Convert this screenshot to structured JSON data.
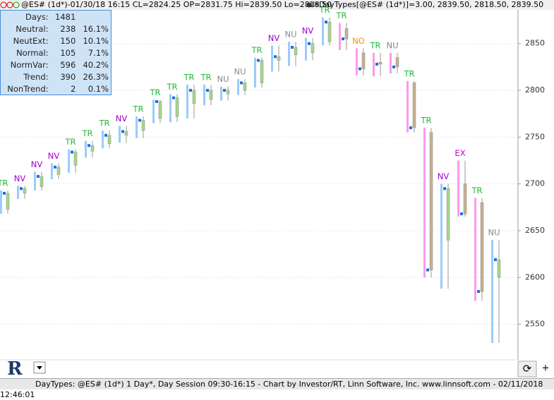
{
  "chart_data": {
    "type": "candlestick",
    "header": "@ES# (1d*)-01/30/18 16:15 CL=2824.25 OP=2831.75 Hi=2839.50 Lo=2818.50",
    "indicator": "IsDayTypes[@ES# (1d*)]=3.00, 2839.50, 2818.50, 2839.50",
    "ylim": [
      2512,
      2886
    ],
    "yticks": [
      2550,
      2600,
      2650,
      2700,
      2750,
      2800,
      2850
    ],
    "grid": true,
    "type_colors": {
      "TR": "#22b83a",
      "NV": "#9a00cc",
      "NU": "#8a8a8a",
      "NO": "#e89a00",
      "EX": "#cc00cc"
    },
    "up_color": "#a6d78a",
    "down_color": "#c8b090",
    "days": [
      {
        "label": "TR",
        "open": 2673,
        "high": 2693,
        "low": 2668,
        "close": 2690
      },
      {
        "label": "NV",
        "open": 2690,
        "high": 2698,
        "low": 2684,
        "close": 2695
      },
      {
        "label": "NV",
        "open": 2697,
        "high": 2713,
        "low": 2693,
        "close": 2708
      },
      {
        "label": "NV",
        "open": 2710,
        "high": 2722,
        "low": 2705,
        "close": 2718
      },
      {
        "label": "TR",
        "open": 2720,
        "high": 2737,
        "low": 2712,
        "close": 2734
      },
      {
        "label": "TR",
        "open": 2735,
        "high": 2746,
        "low": 2728,
        "close": 2741
      },
      {
        "label": "TR",
        "open": 2743,
        "high": 2757,
        "low": 2738,
        "close": 2752
      },
      {
        "label": "NV",
        "open": 2752,
        "high": 2762,
        "low": 2744,
        "close": 2756
      },
      {
        "label": "TR",
        "open": 2757,
        "high": 2772,
        "low": 2749,
        "close": 2768
      },
      {
        "label": "TR",
        "open": 2770,
        "high": 2790,
        "low": 2765,
        "close": 2788
      },
      {
        "label": "TR",
        "open": 2772,
        "high": 2796,
        "low": 2766,
        "close": 2792
      },
      {
        "label": "TR",
        "open": 2786,
        "high": 2806,
        "low": 2770,
        "close": 2800
      },
      {
        "label": "TR",
        "open": 2790,
        "high": 2806,
        "low": 2784,
        "close": 2800
      },
      {
        "label": "NU",
        "open": 2796,
        "high": 2804,
        "low": 2789,
        "close": 2800
      },
      {
        "label": "NU",
        "open": 2800,
        "high": 2812,
        "low": 2795,
        "close": 2808
      },
      {
        "label": "TR",
        "open": 2808,
        "high": 2835,
        "low": 2803,
        "close": 2832
      },
      {
        "label": "NV",
        "open": 2832,
        "high": 2848,
        "low": 2820,
        "close": 2836
      },
      {
        "label": "NU",
        "open": 2838,
        "high": 2852,
        "low": 2826,
        "close": 2846
      },
      {
        "label": "NV",
        "open": 2840,
        "high": 2856,
        "low": 2832,
        "close": 2850
      },
      {
        "label": "TR",
        "open": 2852,
        "high": 2878,
        "low": 2848,
        "close": 2873
      },
      {
        "label": "TR",
        "open": 2866,
        "high": 2872,
        "low": 2843,
        "close": 2855
      },
      {
        "label": "NO",
        "open": 2840,
        "high": 2845,
        "low": 2816,
        "close": 2823
      },
      {
        "label": "TR",
        "open": 2830,
        "high": 2840,
        "low": 2815,
        "close": 2828
      },
      {
        "label": "NU",
        "open": 2835,
        "high": 2840,
        "low": 2818,
        "close": 2825
      },
      {
        "label": "TR",
        "open": 2808,
        "high": 2810,
        "low": 2755,
        "close": 2760
      },
      {
        "label": "TR",
        "open": 2755,
        "high": 2760,
        "low": 2600,
        "close": 2608
      },
      {
        "label": "NV",
        "open": 2640,
        "high": 2700,
        "low": 2588,
        "close": 2695
      },
      {
        "label": "EX",
        "open": 2700,
        "high": 2725,
        "low": 2665,
        "close": 2668
      },
      {
        "label": "TR",
        "open": 2680,
        "high": 2685,
        "low": 2575,
        "close": 2585
      },
      {
        "label": "NU",
        "open": 2600,
        "high": 2640,
        "low": 2530,
        "close": 2619
      }
    ]
  },
  "stats": {
    "rows": [
      [
        "Days:",
        "1481",
        ""
      ],
      [
        "Neutral:",
        "238",
        "16.1%"
      ],
      [
        "NeutExt:",
        "150",
        "10.1%"
      ],
      [
        "Normal:",
        "105",
        "7.1%"
      ],
      [
        "NormVar:",
        "596",
        "40.2%"
      ],
      [
        "Trend:",
        "390",
        "26.3%"
      ],
      [
        "NonTrend:",
        "2",
        "0.1%"
      ]
    ]
  },
  "status": "DayTypes: @ES# (1d*) 1 Day*, Day Session 09:30-16:15 - Chart by Investor/RT, Linn Software, Inc. www.linnsoft.com - 02/11/2018 12:46:01"
}
